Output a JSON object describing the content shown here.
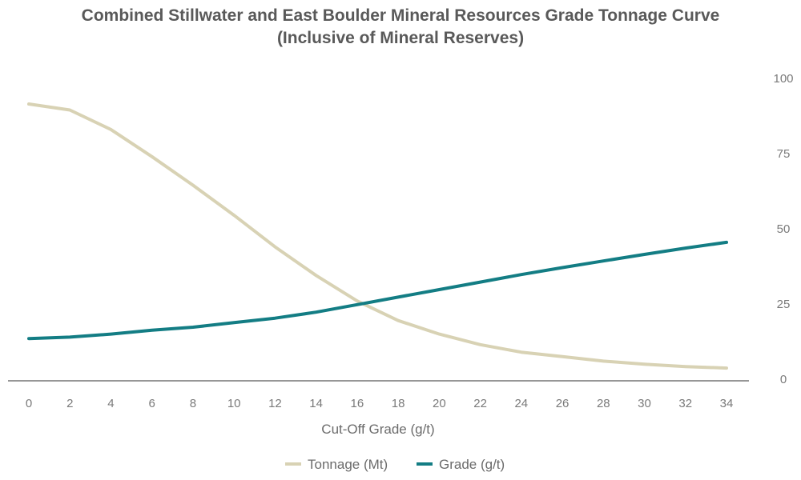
{
  "chart_data": {
    "type": "line",
    "title_line1": "Combined Stillwater and East Boulder Mineral Resources Grade Tonnage Curve",
    "title_line2": "(Inclusive of Mineral Reserves)",
    "xlabel": "Cut-Off Grade (g/t)",
    "ylabel": "",
    "x": [
      0,
      2,
      4,
      6,
      8,
      10,
      12,
      14,
      16,
      18,
      20,
      22,
      24,
      26,
      28,
      30,
      32,
      34
    ],
    "xticks": [
      "0",
      "2",
      "4",
      "6",
      "8",
      "10",
      "12",
      "14",
      "16",
      "18",
      "20",
      "22",
      "24",
      "26",
      "28",
      "30",
      "32",
      "34"
    ],
    "ylim": [
      0,
      100
    ],
    "yticks": [
      "0",
      "25",
      "50",
      "75",
      "100"
    ],
    "y_axis_side": "right",
    "series": [
      {
        "name": "Tonnage (Mt)",
        "color": "#d8d2b4",
        "values": [
          91.5,
          89.5,
          83,
          74,
          64.5,
          54.5,
          44,
          34.5,
          26,
          19.5,
          15,
          11.5,
          9,
          7.5,
          6,
          5,
          4.2,
          3.7
        ]
      },
      {
        "name": "Grade (g/t)",
        "color": "#137d84",
        "values": [
          13.5,
          14,
          15,
          16.3,
          17.3,
          18.8,
          20.3,
          22.3,
          24.8,
          27.3,
          29.8,
          32.3,
          34.8,
          37.1,
          39.3,
          41.5,
          43.6,
          45.5
        ]
      }
    ],
    "legend_position": "bottom-center"
  }
}
